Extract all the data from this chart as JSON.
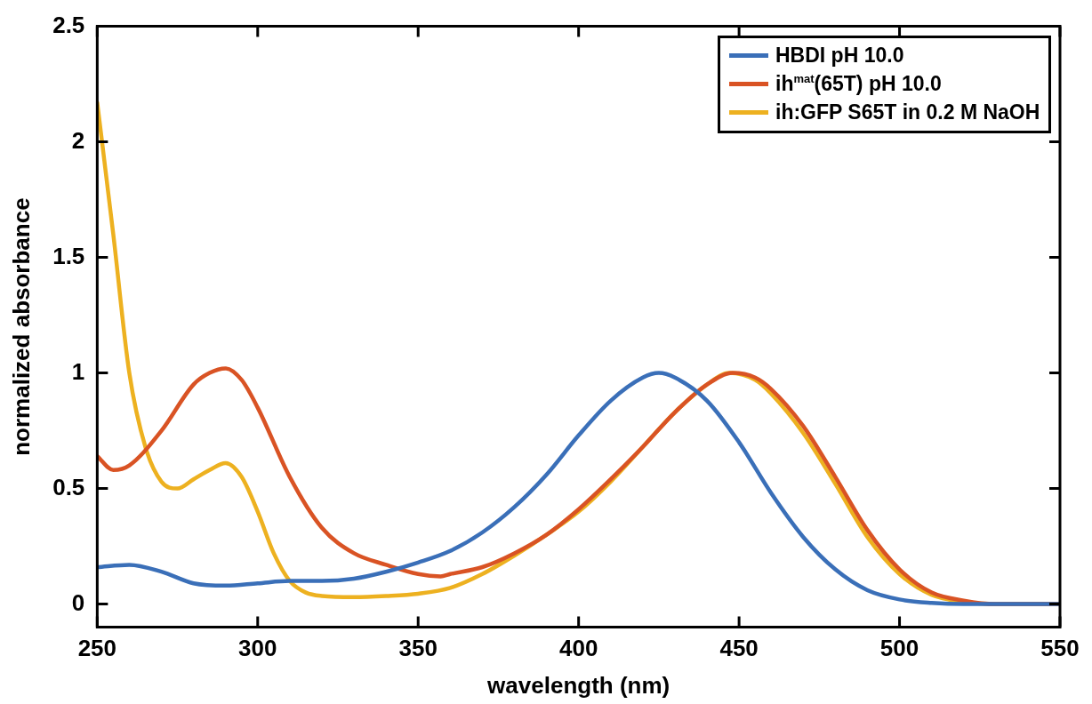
{
  "chart_data": {
    "type": "line",
    "xlabel": "wavelength (nm)",
    "ylabel": "normalized absorbance",
    "xlim": [
      250,
      550
    ],
    "xticks": [
      250,
      300,
      350,
      400,
      450,
      500,
      550
    ],
    "ylim": [
      -0.1,
      2.5
    ],
    "yticks": [
      0,
      0.5,
      1,
      1.5,
      2,
      2.5
    ],
    "grid": false,
    "legend": "top right",
    "line_style": "solid",
    "marker": "none",
    "series": [
      {
        "name": "HBDI pH 10.0",
        "color": "#3a6fb8",
        "x": [
          250,
          260,
          270,
          280,
          290,
          300,
          310,
          320,
          330,
          340,
          350,
          360,
          370,
          380,
          390,
          400,
          410,
          420,
          425,
          430,
          440,
          450,
          460,
          470,
          480,
          490,
          500,
          510,
          520,
          550
        ],
        "values": [
          0.16,
          0.17,
          0.14,
          0.09,
          0.08,
          0.09,
          0.1,
          0.1,
          0.11,
          0.14,
          0.18,
          0.23,
          0.31,
          0.42,
          0.56,
          0.73,
          0.88,
          0.98,
          1.0,
          0.98,
          0.88,
          0.7,
          0.48,
          0.29,
          0.15,
          0.06,
          0.02,
          0.005,
          0,
          0
        ]
      },
      {
        "name": "ih$^{mat}$(65T) pH 10.0",
        "color": "#d95324",
        "x": [
          250,
          255,
          260,
          270,
          280,
          285,
          290,
          295,
          300,
          310,
          320,
          330,
          340,
          350,
          357,
          360,
          370,
          380,
          390,
          400,
          410,
          420,
          430,
          440,
          448,
          455,
          460,
          470,
          480,
          490,
          500,
          510,
          520,
          530,
          550
        ],
        "values": [
          0.64,
          0.58,
          0.6,
          0.75,
          0.95,
          1.0,
          1.02,
          0.97,
          0.85,
          0.55,
          0.33,
          0.22,
          0.17,
          0.13,
          0.12,
          0.13,
          0.16,
          0.22,
          0.3,
          0.41,
          0.54,
          0.68,
          0.83,
          0.95,
          1.0,
          0.98,
          0.93,
          0.77,
          0.55,
          0.32,
          0.15,
          0.05,
          0.015,
          0,
          0
        ]
      },
      {
        "name": "ih:GFP S65T in 0.2 M NaOH",
        "color": "#edb120",
        "x": [
          250,
          255,
          260,
          265,
          270,
          275,
          280,
          285,
          290,
          295,
          300,
          305,
          310,
          315,
          320,
          330,
          340,
          350,
          360,
          370,
          380,
          390,
          400,
          410,
          420,
          430,
          440,
          447,
          455,
          460,
          470,
          480,
          490,
          500,
          510,
          520,
          530,
          550
        ],
        "values": [
          2.17,
          1.6,
          1.0,
          0.68,
          0.53,
          0.5,
          0.54,
          0.58,
          0.61,
          0.55,
          0.4,
          0.22,
          0.1,
          0.05,
          0.035,
          0.03,
          0.035,
          0.045,
          0.07,
          0.13,
          0.21,
          0.3,
          0.4,
          0.53,
          0.68,
          0.83,
          0.95,
          1.0,
          0.97,
          0.91,
          0.74,
          0.52,
          0.29,
          0.13,
          0.04,
          0.01,
          0,
          0
        ]
      }
    ]
  }
}
